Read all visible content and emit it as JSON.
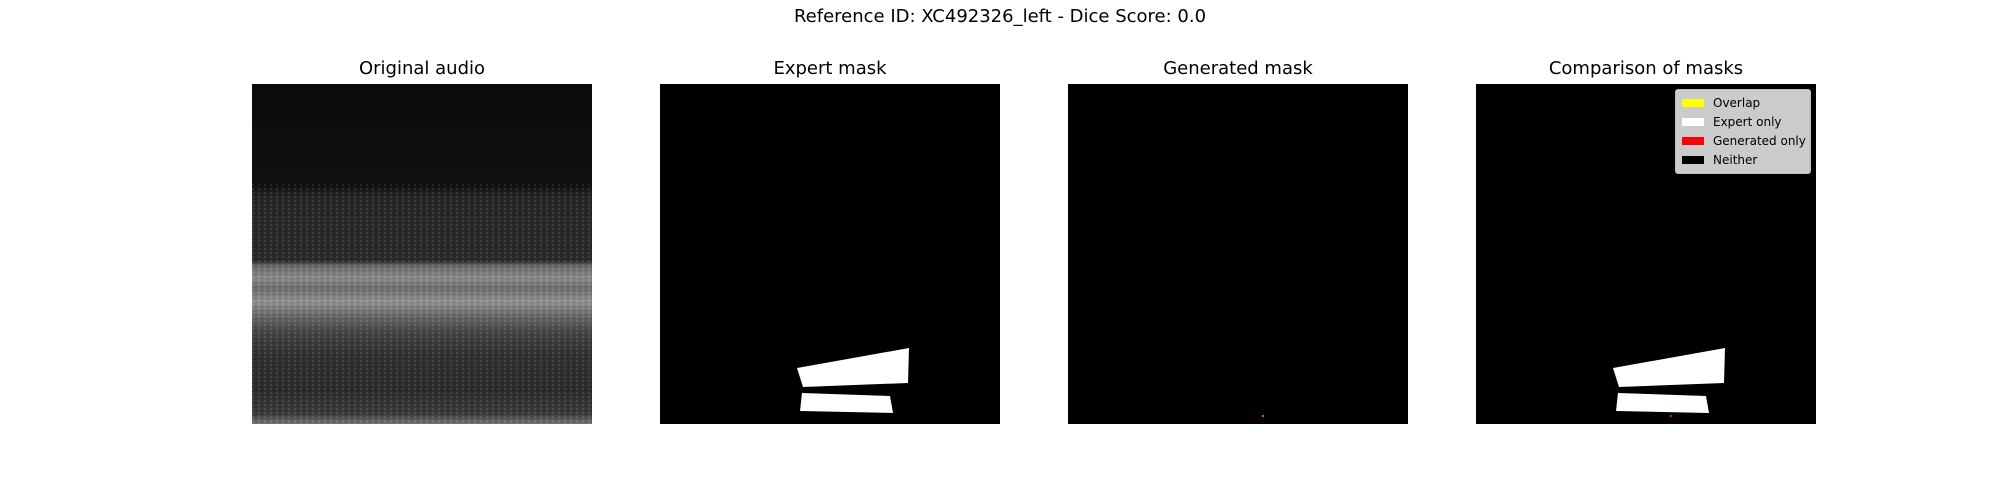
{
  "suptitle": "Reference ID: XC492326_left - Dice Score: 0.0",
  "panels": [
    {
      "title": "Original audio"
    },
    {
      "title": "Expert mask"
    },
    {
      "title": "Generated mask"
    },
    {
      "title": "Comparison of masks"
    }
  ],
  "legend": {
    "items": [
      {
        "label": "Overlap",
        "color": "#ffff00"
      },
      {
        "label": "Expert only",
        "color": "#ffffff"
      },
      {
        "label": "Generated only",
        "color": "#ff0000"
      },
      {
        "label": "Neither",
        "color": "#000000"
      }
    ]
  },
  "chart_data": [
    {
      "type": "heatmap",
      "title": "Original audio",
      "colormap": "grayscale"
    },
    {
      "type": "heatmap",
      "title": "Expert mask",
      "colormap": "binary"
    },
    {
      "type": "heatmap",
      "title": "Generated mask",
      "colormap": "binary"
    },
    {
      "type": "heatmap",
      "title": "Comparison of masks",
      "colormap": "categorical"
    }
  ]
}
